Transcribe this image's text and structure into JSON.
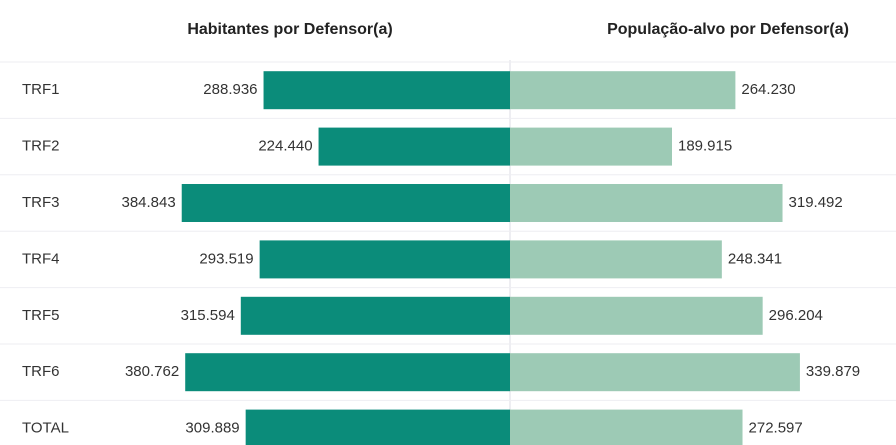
{
  "chart_data": {
    "type": "bar",
    "categories": [
      "TRF1",
      "TRF2",
      "TRF3",
      "TRF4",
      "TRF5",
      "TRF6",
      "TOTAL"
    ],
    "series": [
      {
        "name": "Habitantes por Defensor(a)",
        "color": "#0b8c7a",
        "values": [
          288936,
          224440,
          384843,
          293519,
          315594,
          380762,
          309889
        ],
        "value_labels": [
          "288.936",
          "224.440",
          "384.843",
          "293.519",
          "315.594",
          "380.762",
          "309.889"
        ]
      },
      {
        "name": "População-alvo por Defensor(a)",
        "color": "#9dcab5",
        "values": [
          264230,
          189915,
          319492,
          248341,
          296204,
          339879,
          272597
        ],
        "value_labels": [
          "264.230",
          "189.915",
          "319.492",
          "248.341",
          "296.204",
          "339.879",
          "272.597"
        ]
      }
    ]
  }
}
